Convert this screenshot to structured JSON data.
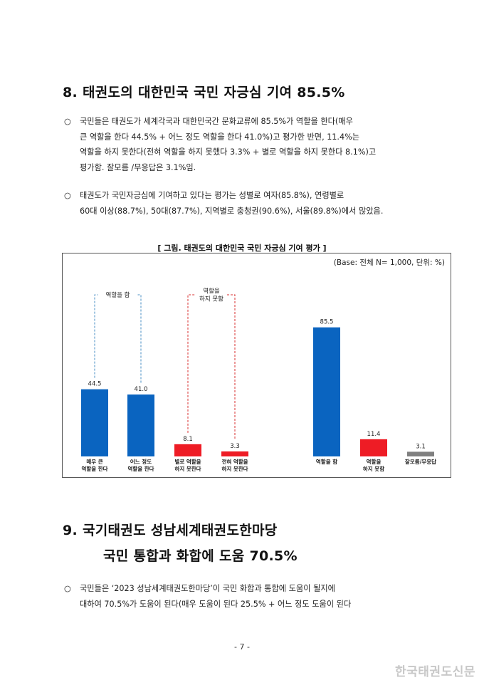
{
  "section8": {
    "title": "8. 태권도의 대한민국 국민 자긍심 기여 85.5%",
    "bullet": "○",
    "p1": [
      "국민들은 태권도가 세계각국과 대한민국간 문화교류에 85.5%가 역할을 한다(매우",
      "큰 역할을 한다 44.5% + 어느 정도 역할을 한다 41.0%)고 평가한 반면, 11.4%는",
      "역할을 하지 못한다(전혀 역할을 하지 못했다 3.3% + 별로 역할을 하지 못한다 8.1%)고",
      "평가함. 잘모름 /무응답은 3.1%임."
    ],
    "p2": [
      "태권도가 국민자긍심에 기여하고 있다는 평가는 성별로 여자(85.8%), 연령별로",
      "60대 이상(88.7%), 50대(87.7%), 지역별로 충청권(90.6%), 서울(89.8%)에서 많았음."
    ]
  },
  "figure": {
    "title": "[ 그림. 태권도의 대한민국 국민 자긍심 기여 평가 ]",
    "base": "(Base: 전체 N= 1,000, 단위: %)"
  },
  "chart_data": {
    "type": "bar",
    "categories": [
      "매우 큰 역할을 한다",
      "어느 정도 역할을 한다",
      "별로 역할을 하지 못한다",
      "전혀 역할을 하지 못한다",
      "역할을 함",
      "역할을 하지 못함",
      "잘모름/무응답"
    ],
    "tick_labels": [
      [
        "매우 큰",
        "역할을 한다"
      ],
      [
        "어느 정도",
        "역할을 한다"
      ],
      [
        "별로 역할을",
        "하지 못한다"
      ],
      [
        "전혀 역할을",
        "하지 못한다"
      ],
      [
        "역할을 함"
      ],
      [
        "역할을",
        "하지 못함"
      ],
      [
        "잘모름/무응답"
      ]
    ],
    "values": [
      44.5,
      41.0,
      8.1,
      3.3,
      85.5,
      11.4,
      3.1
    ],
    "value_labels": [
      "44.5",
      "41.0",
      "8.1",
      "3.3",
      "85.5",
      "11.4",
      "3.1"
    ],
    "colors": [
      "#0a64c0",
      "#0a64c0",
      "#ee1c25",
      "#ee1c25",
      "#0a64c0",
      "#ee1c25",
      "#808080"
    ],
    "groups": [
      {
        "label": [
          "역할을 함"
        ],
        "color": "#4a8fc4"
      },
      {
        "label": [
          "역할을",
          "하지 못함"
        ],
        "color": "#d83030"
      }
    ],
    "ylim": [
      0,
      100
    ],
    "grid": false
  },
  "section9": {
    "title_line1": "9. 국기태권도 성남세계태권도한마당",
    "title_line2": "국민 통합과 화합에 도움 70.5%",
    "bullet": "○",
    "p1": [
      "국민들은 ‘2023 성남세계태권도한마당’이 국민 화합과 통합에 도움이 될지에",
      "대하여 70.5%가 도움이 된다(매우 도움이 된다 25.5% + 어느 정도 도움이 된다"
    ]
  },
  "page_number": "- 7 -",
  "watermark": "한국태권도신문"
}
